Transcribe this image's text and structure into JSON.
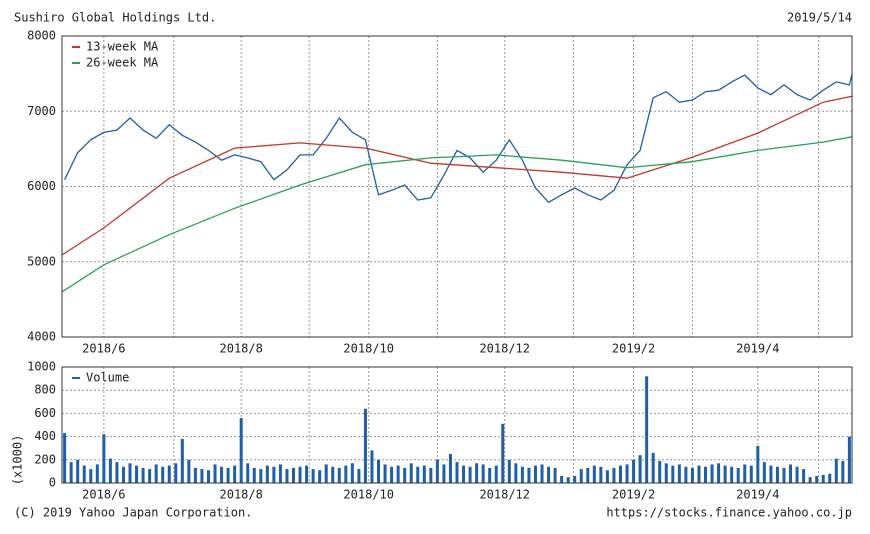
{
  "header": {
    "title": "Sushiro Global Holdings Ltd.",
    "date": "2019/5/14"
  },
  "footer": {
    "copyright": "(C) 2019 Yahoo Japan Corporation.",
    "url": "https://stocks.finance.yahoo.co.jp"
  },
  "chart_data": [
    {
      "type": "line",
      "xlim": [
        5.36,
        17.44
      ],
      "ylim": [
        4000,
        8000
      ],
      "yticks": [
        4000,
        5000,
        6000,
        7000,
        8000
      ],
      "xticks": [
        {
          "value": 6,
          "label": "2018/6"
        },
        {
          "value": 8.1,
          "label": "2018/8"
        },
        {
          "value": 10.05,
          "label": "2018/10"
        },
        {
          "value": 12.13,
          "label": "2018/12"
        },
        {
          "value": 14.1,
          "label": "2019/2"
        },
        {
          "value": 16,
          "label": "2019/4"
        }
      ],
      "xminor": [
        7.07,
        9.14,
        11.1,
        13.18,
        15,
        16.93
      ],
      "grid": true,
      "legend": "top-left",
      "series": [
        {
          "color": "#1f5fa8",
          "x": [
            5.4,
            5.6,
            5.8,
            6.0,
            6.2,
            6.4,
            6.6,
            6.8,
            7.0,
            7.2,
            7.4,
            7.6,
            7.8,
            8.0,
            8.2,
            8.4,
            8.6,
            8.8,
            9.0,
            9.2,
            9.4,
            9.6,
            9.8,
            10.0,
            10.2,
            10.4,
            10.6,
            10.8,
            11.0,
            11.2,
            11.4,
            11.6,
            11.8,
            12.0,
            12.2,
            12.4,
            12.6,
            12.8,
            13.0,
            13.2,
            13.4,
            13.6,
            13.8,
            14.0,
            14.2,
            14.4,
            14.6,
            14.8,
            15.0,
            15.2,
            15.4,
            15.6,
            15.8,
            16.0,
            16.2,
            16.4,
            16.6,
            16.8,
            17.0,
            17.2,
            17.4,
            17.44
          ],
          "values": [
            6090,
            6450,
            6620,
            6720,
            6750,
            6910,
            6750,
            6640,
            6820,
            6680,
            6590,
            6480,
            6350,
            6420,
            6380,
            6330,
            6090,
            6220,
            6420,
            6420,
            6640,
            6910,
            6720,
            6620,
            5890,
            5950,
            6020,
            5820,
            5850,
            6150,
            6480,
            6380,
            6190,
            6350,
            6620,
            6350,
            5980,
            5790,
            5890,
            5980,
            5890,
            5820,
            5950,
            6290,
            6480,
            7180,
            7260,
            7120,
            7150,
            7260,
            7280,
            7390,
            7480,
            7310,
            7220,
            7350,
            7220,
            7150,
            7280,
            7390,
            7350,
            7490
          ]
        },
        {
          "name": "13-week MA",
          "color": "#c0392b",
          "x": [
            5.36,
            6,
            7,
            8,
            9,
            10,
            11,
            12,
            13,
            14,
            15,
            16,
            17,
            17.44
          ],
          "values": [
            5090,
            5450,
            6110,
            6510,
            6580,
            6510,
            6310,
            6250,
            6190,
            6110,
            6390,
            6710,
            7120,
            7200
          ]
        },
        {
          "name": "26-week MA",
          "color": "#27a05a",
          "x": [
            5.36,
            6,
            7,
            8,
            9,
            10,
            11,
            12,
            13,
            14,
            15,
            16,
            17,
            17.44
          ],
          "values": [
            4600,
            4960,
            5360,
            5710,
            6020,
            6290,
            6380,
            6420,
            6350,
            6250,
            6330,
            6480,
            6590,
            6660
          ]
        }
      ]
    },
    {
      "type": "bar",
      "y_label": "(x1000)",
      "xlim": [
        5.36,
        17.44
      ],
      "ylim": [
        0,
        1000
      ],
      "yticks": [
        0,
        200,
        400,
        600,
        800,
        1000
      ],
      "xticks": [
        {
          "value": 6,
          "label": "2018/6"
        },
        {
          "value": 8.1,
          "label": "2018/8"
        },
        {
          "value": 10.05,
          "label": "2018/10"
        },
        {
          "value": 12.13,
          "label": "2018/12"
        },
        {
          "value": 14.1,
          "label": "2019/2"
        },
        {
          "value": 16,
          "label": "2019/4"
        }
      ],
      "xminor": [
        7.07,
        9.14,
        11.1,
        13.18,
        15,
        16.93
      ],
      "grid": true,
      "legend": "top-left",
      "series": [
        {
          "name": "Volume",
          "color": "#1f5fa8",
          "x": [
            5.4,
            5.5,
            5.6,
            5.7,
            5.8,
            5.9,
            6.0,
            6.1,
            6.2,
            6.3,
            6.4,
            6.5,
            6.6,
            6.7,
            6.8,
            6.9,
            7.0,
            7.1,
            7.2,
            7.3,
            7.4,
            7.5,
            7.6,
            7.7,
            7.8,
            7.9,
            8.0,
            8.1,
            8.2,
            8.3,
            8.4,
            8.5,
            8.6,
            8.7,
            8.8,
            8.9,
            9.0,
            9.1,
            9.2,
            9.3,
            9.4,
            9.5,
            9.6,
            9.7,
            9.8,
            9.9,
            10.0,
            10.1,
            10.2,
            10.3,
            10.4,
            10.5,
            10.6,
            10.7,
            10.8,
            10.9,
            11.0,
            11.1,
            11.2,
            11.3,
            11.4,
            11.5,
            11.6,
            11.7,
            11.8,
            11.9,
            12.0,
            12.1,
            12.2,
            12.3,
            12.4,
            12.5,
            12.6,
            12.7,
            12.8,
            12.9,
            13.0,
            13.1,
            13.2,
            13.3,
            13.4,
            13.5,
            13.6,
            13.7,
            13.8,
            13.9,
            14.0,
            14.1,
            14.2,
            14.3,
            14.4,
            14.5,
            14.6,
            14.7,
            14.8,
            14.9,
            15.0,
            15.1,
            15.2,
            15.3,
            15.4,
            15.5,
            15.6,
            15.7,
            15.8,
            15.9,
            16.0,
            16.1,
            16.2,
            16.3,
            16.4,
            16.5,
            16.6,
            16.7,
            16.8,
            16.9,
            17.0,
            17.1,
            17.2,
            17.3,
            17.4
          ],
          "values": [
            430,
            180,
            200,
            150,
            120,
            160,
            420,
            210,
            180,
            140,
            170,
            150,
            130,
            120,
            160,
            140,
            150,
            170,
            380,
            200,
            130,
            120,
            110,
            160,
            140,
            130,
            150,
            560,
            170,
            130,
            120,
            150,
            140,
            160,
            120,
            130,
            140,
            150,
            120,
            110,
            160,
            140,
            130,
            150,
            170,
            120,
            640,
            280,
            200,
            160,
            140,
            150,
            130,
            170,
            140,
            150,
            130,
            200,
            160,
            250,
            180,
            150,
            140,
            170,
            160,
            130,
            150,
            510,
            200,
            170,
            140,
            130,
            150,
            160,
            140,
            130,
            60,
            50,
            60,
            120,
            130,
            150,
            140,
            110,
            130,
            150,
            160,
            200,
            240,
            920,
            260,
            190,
            170,
            150,
            160,
            140,
            130,
            150,
            140,
            160,
            170,
            150,
            140,
            130,
            160,
            150,
            320,
            180,
            150,
            140,
            130,
            160,
            140,
            120,
            50,
            60,
            70,
            80,
            210,
            190,
            400
          ]
        }
      ]
    }
  ]
}
